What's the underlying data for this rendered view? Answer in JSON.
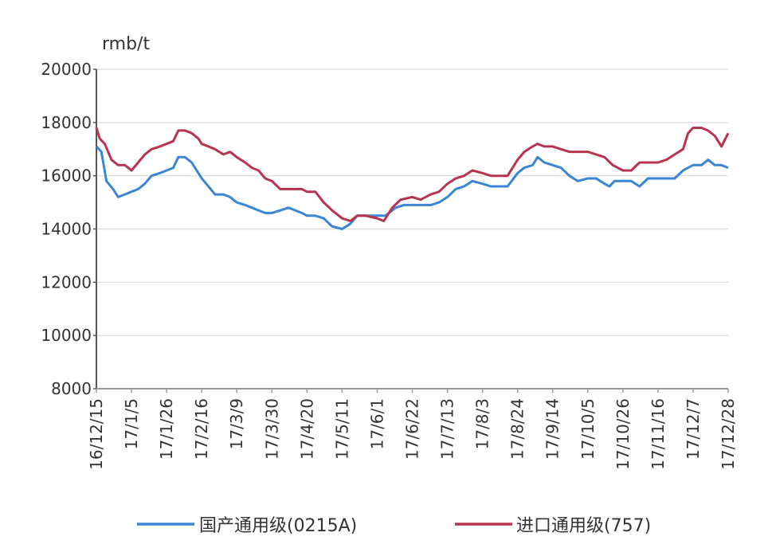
{
  "chart_data": {
    "type": "line",
    "ylabel": "rmb/t",
    "ylim": [
      8000,
      20000
    ],
    "yticks": [
      "20000",
      "18000",
      "16000",
      "14000",
      "12000",
      "10000",
      "8000"
    ],
    "ytick_values": [
      20000,
      18000,
      16000,
      14000,
      12000,
      10000,
      8000
    ],
    "x_ticks": [
      "16/12/15",
      "17/1/5",
      "17/1/26",
      "17/2/16",
      "17/3/9",
      "17/3/30",
      "17/4/20",
      "17/5/11",
      "17/6/1",
      "17/6/22",
      "17/7/13",
      "17/8/3",
      "17/8/24",
      "17/9/14",
      "17/10/5",
      "17/10/26",
      "17/11/16",
      "17/12/7",
      "17/12/28"
    ],
    "grid": "horizontal",
    "legend_position": "bottom",
    "series": [
      {
        "name": "国产通用级(0215A)",
        "color": "#3a85d4",
        "points": [
          [
            "16/12/15",
            17100
          ],
          [
            "16/12/18",
            16900
          ],
          [
            "16/12/21",
            15800
          ],
          [
            "16/12/25",
            15500
          ],
          [
            "16/12/28",
            15200
          ],
          [
            "17/1/1",
            15300
          ],
          [
            "17/1/5",
            15400
          ],
          [
            "17/1/9",
            15500
          ],
          [
            "17/1/13",
            15700
          ],
          [
            "17/1/17",
            16000
          ],
          [
            "17/1/22",
            16100
          ],
          [
            "17/1/26",
            16200
          ],
          [
            "17/1/30",
            16300
          ],
          [
            "17/2/2",
            16700
          ],
          [
            "17/2/6",
            16700
          ],
          [
            "17/2/10",
            16500
          ],
          [
            "17/2/14",
            16100
          ],
          [
            "17/2/16",
            15900
          ],
          [
            "17/2/20",
            15600
          ],
          [
            "17/2/24",
            15300
          ],
          [
            "17/3/1",
            15300
          ],
          [
            "17/3/5",
            15200
          ],
          [
            "17/3/9",
            15000
          ],
          [
            "17/3/14",
            14900
          ],
          [
            "17/3/18",
            14800
          ],
          [
            "17/3/22",
            14700
          ],
          [
            "17/3/26",
            14600
          ],
          [
            "17/3/30",
            14600
          ],
          [
            "17/4/4",
            14700
          ],
          [
            "17/4/9",
            14800
          ],
          [
            "17/4/13",
            14700
          ],
          [
            "17/4/17",
            14600
          ],
          [
            "17/4/20",
            14500
          ],
          [
            "17/4/25",
            14500
          ],
          [
            "17/4/30",
            14400
          ],
          [
            "17/5/5",
            14100
          ],
          [
            "17/5/11",
            14000
          ],
          [
            "17/5/16",
            14200
          ],
          [
            "17/5/20",
            14500
          ],
          [
            "17/5/25",
            14500
          ],
          [
            "17/6/1",
            14500
          ],
          [
            "17/6/6",
            14500
          ],
          [
            "17/6/12",
            14800
          ],
          [
            "17/6/17",
            14900
          ],
          [
            "17/6/22",
            14900
          ],
          [
            "17/6/27",
            14900
          ],
          [
            "17/7/3",
            14900
          ],
          [
            "17/7/8",
            15000
          ],
          [
            "17/7/13",
            15200
          ],
          [
            "17/7/18",
            15500
          ],
          [
            "17/7/23",
            15600
          ],
          [
            "17/7/28",
            15800
          ],
          [
            "17/8/3",
            15700
          ],
          [
            "17/8/8",
            15600
          ],
          [
            "17/8/13",
            15600
          ],
          [
            "17/8/18",
            15600
          ],
          [
            "17/8/24",
            16100
          ],
          [
            "17/8/28",
            16300
          ],
          [
            "17/9/2",
            16400
          ],
          [
            "17/9/5",
            16700
          ],
          [
            "17/9/9",
            16500
          ],
          [
            "17/9/14",
            16400
          ],
          [
            "17/9/19",
            16300
          ],
          [
            "17/9/24",
            16000
          ],
          [
            "17/9/29",
            15800
          ],
          [
            "17/10/5",
            15900
          ],
          [
            "17/10/10",
            15900
          ],
          [
            "17/10/15",
            15700
          ],
          [
            "17/10/18",
            15600
          ],
          [
            "17/10/21",
            15800
          ],
          [
            "17/10/26",
            15800
          ],
          [
            "17/10/31",
            15800
          ],
          [
            "17/11/5",
            15600
          ],
          [
            "17/11/10",
            15900
          ],
          [
            "17/11/16",
            15900
          ],
          [
            "17/11/21",
            15900
          ],
          [
            "17/11/26",
            15900
          ],
          [
            "17/12/1",
            16200
          ],
          [
            "17/12/4",
            16300
          ],
          [
            "17/12/7",
            16400
          ],
          [
            "17/12/12",
            16400
          ],
          [
            "17/12/16",
            16600
          ],
          [
            "17/12/20",
            16400
          ],
          [
            "17/12/24",
            16400
          ],
          [
            "17/12/28",
            16300
          ]
        ]
      },
      {
        "name": "进口通用级(757)",
        "color": "#b8334f",
        "points": [
          [
            "16/12/15",
            17800
          ],
          [
            "16/12/17",
            17400
          ],
          [
            "16/12/20",
            17200
          ],
          [
            "16/12/24",
            16600
          ],
          [
            "16/12/28",
            16400
          ],
          [
            "17/1/1",
            16400
          ],
          [
            "17/1/3",
            16300
          ],
          [
            "17/1/5",
            16200
          ],
          [
            "17/1/9",
            16500
          ],
          [
            "17/1/13",
            16800
          ],
          [
            "17/1/17",
            17000
          ],
          [
            "17/1/22",
            17100
          ],
          [
            "17/1/26",
            17200
          ],
          [
            "17/1/30",
            17300
          ],
          [
            "17/2/2",
            17700
          ],
          [
            "17/2/6",
            17700
          ],
          [
            "17/2/10",
            17600
          ],
          [
            "17/2/14",
            17400
          ],
          [
            "17/2/16",
            17200
          ],
          [
            "17/2/20",
            17100
          ],
          [
            "17/2/24",
            17000
          ],
          [
            "17/3/1",
            16800
          ],
          [
            "17/3/5",
            16900
          ],
          [
            "17/3/9",
            16700
          ],
          [
            "17/3/14",
            16500
          ],
          [
            "17/3/18",
            16300
          ],
          [
            "17/3/22",
            16200
          ],
          [
            "17/3/26",
            15900
          ],
          [
            "17/3/30",
            15800
          ],
          [
            "17/4/4",
            15500
          ],
          [
            "17/4/9",
            15500
          ],
          [
            "17/4/13",
            15500
          ],
          [
            "17/4/17",
            15500
          ],
          [
            "17/4/20",
            15400
          ],
          [
            "17/4/25",
            15400
          ],
          [
            "17/4/30",
            15000
          ],
          [
            "17/5/5",
            14700
          ],
          [
            "17/5/11",
            14400
          ],
          [
            "17/5/16",
            14300
          ],
          [
            "17/5/20",
            14500
          ],
          [
            "17/5/25",
            14500
          ],
          [
            "17/6/1",
            14400
          ],
          [
            "17/6/5",
            14300
          ],
          [
            "17/6/10",
            14800
          ],
          [
            "17/6/15",
            15100
          ],
          [
            "17/6/22",
            15200
          ],
          [
            "17/6/27",
            15100
          ],
          [
            "17/7/3",
            15300
          ],
          [
            "17/7/8",
            15400
          ],
          [
            "17/7/13",
            15700
          ],
          [
            "17/7/18",
            15900
          ],
          [
            "17/7/23",
            16000
          ],
          [
            "17/7/28",
            16200
          ],
          [
            "17/8/3",
            16100
          ],
          [
            "17/8/8",
            16000
          ],
          [
            "17/8/13",
            16000
          ],
          [
            "17/8/18",
            16000
          ],
          [
            "17/8/24",
            16600
          ],
          [
            "17/8/28",
            16900
          ],
          [
            "17/9/2",
            17100
          ],
          [
            "17/9/5",
            17200
          ],
          [
            "17/9/9",
            17100
          ],
          [
            "17/9/14",
            17100
          ],
          [
            "17/9/19",
            17000
          ],
          [
            "17/9/24",
            16900
          ],
          [
            "17/9/29",
            16900
          ],
          [
            "17/10/5",
            16900
          ],
          [
            "17/10/10",
            16800
          ],
          [
            "17/10/15",
            16700
          ],
          [
            "17/10/20",
            16400
          ],
          [
            "17/10/26",
            16200
          ],
          [
            "17/10/31",
            16200
          ],
          [
            "17/11/5",
            16500
          ],
          [
            "17/11/10",
            16500
          ],
          [
            "17/11/16",
            16500
          ],
          [
            "17/11/21",
            16600
          ],
          [
            "17/11/26",
            16800
          ],
          [
            "17/12/1",
            17000
          ],
          [
            "17/12/4",
            17600
          ],
          [
            "17/12/7",
            17800
          ],
          [
            "17/12/12",
            17800
          ],
          [
            "17/12/16",
            17700
          ],
          [
            "17/12/20",
            17500
          ],
          [
            "17/12/24",
            17100
          ],
          [
            "17/12/28",
            17600
          ]
        ]
      }
    ]
  }
}
